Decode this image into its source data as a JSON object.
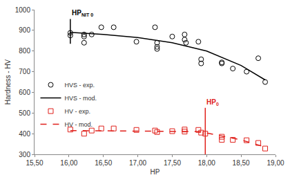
{
  "chart_data": {
    "type": "scatter",
    "x_label": "HP",
    "y_label": "Hardness - HV",
    "xlim": [
      15.5,
      19.0
    ],
    "xticks": [
      {
        "value": 15.5,
        "label": "15,50"
      },
      {
        "value": 16.0,
        "label": "16,00"
      },
      {
        "value": 16.5,
        "label": "16,50"
      },
      {
        "value": 17.0,
        "label": "17,00"
      },
      {
        "value": 17.5,
        "label": "17,50"
      },
      {
        "value": 18.0,
        "label": "18,00"
      },
      {
        "value": 18.5,
        "label": "18,50"
      },
      {
        "value": 19.0,
        "label": "19,00"
      }
    ],
    "ylim": [
      300,
      1000
    ],
    "yticks": [
      300,
      400,
      500,
      600,
      700,
      800,
      900,
      1000
    ],
    "grid": false,
    "legend": "left",
    "series": [
      {
        "name": "HVS - exp.",
        "type": "scatter",
        "marker": "circle-open",
        "color": "#000000",
        "x": [
          16.02,
          16.02,
          16.22,
          16.22,
          16.22,
          16.33,
          16.47,
          16.65,
          16.98,
          17.25,
          17.28,
          17.28,
          17.28,
          17.5,
          17.68,
          17.68,
          17.7,
          17.88,
          17.92,
          17.92,
          18.22,
          18.22,
          18.38,
          18.58,
          18.75,
          18.85
        ],
        "values": [
          888,
          875,
          880,
          870,
          840,
          880,
          915,
          915,
          845,
          915,
          840,
          820,
          810,
          870,
          880,
          855,
          840,
          845,
          760,
          740,
          745,
          740,
          715,
          700,
          765,
          650
        ]
      },
      {
        "name": "HVS - mod.",
        "type": "line",
        "line_style": "solid",
        "color": "#000000",
        "x": [
          16.02,
          16.5,
          17.0,
          17.5,
          18.0,
          18.5,
          18.85
        ],
        "values": [
          890,
          880,
          865,
          840,
          800,
          730,
          660
        ]
      },
      {
        "name": "HV - exp.",
        "type": "scatter",
        "marker": "square-open",
        "color": "#e0201b",
        "x": [
          16.02,
          16.22,
          16.33,
          16.47,
          16.65,
          16.98,
          17.25,
          17.28,
          17.5,
          17.68,
          17.68,
          17.88,
          17.92,
          17.98,
          18.22,
          18.22,
          18.38,
          18.58,
          18.75,
          18.85
        ],
        "values": [
          420,
          400,
          415,
          425,
          425,
          418,
          415,
          408,
          412,
          420,
          410,
          418,
          405,
          400,
          370,
          385,
          370,
          368,
          355,
          328
        ]
      },
      {
        "name": "HV - mod.",
        "type": "line",
        "line_style": "dash",
        "color": "#e0201b",
        "x": [
          16.02,
          17.0,
          17.5,
          17.9,
          18.2,
          18.5,
          18.85
        ],
        "values": [
          415,
          413,
          412,
          410,
          390,
          370,
          335
        ]
      }
    ],
    "annotations": [
      {
        "text": "HP",
        "subscript": "NIT 0",
        "x": 16.02,
        "y_from": 835,
        "y_to": 955,
        "color": "#000000"
      },
      {
        "text": "HP",
        "subscript": "0",
        "x": 17.98,
        "y_from": 300,
        "y_to": 525,
        "color": "#e0201b"
      }
    ]
  }
}
